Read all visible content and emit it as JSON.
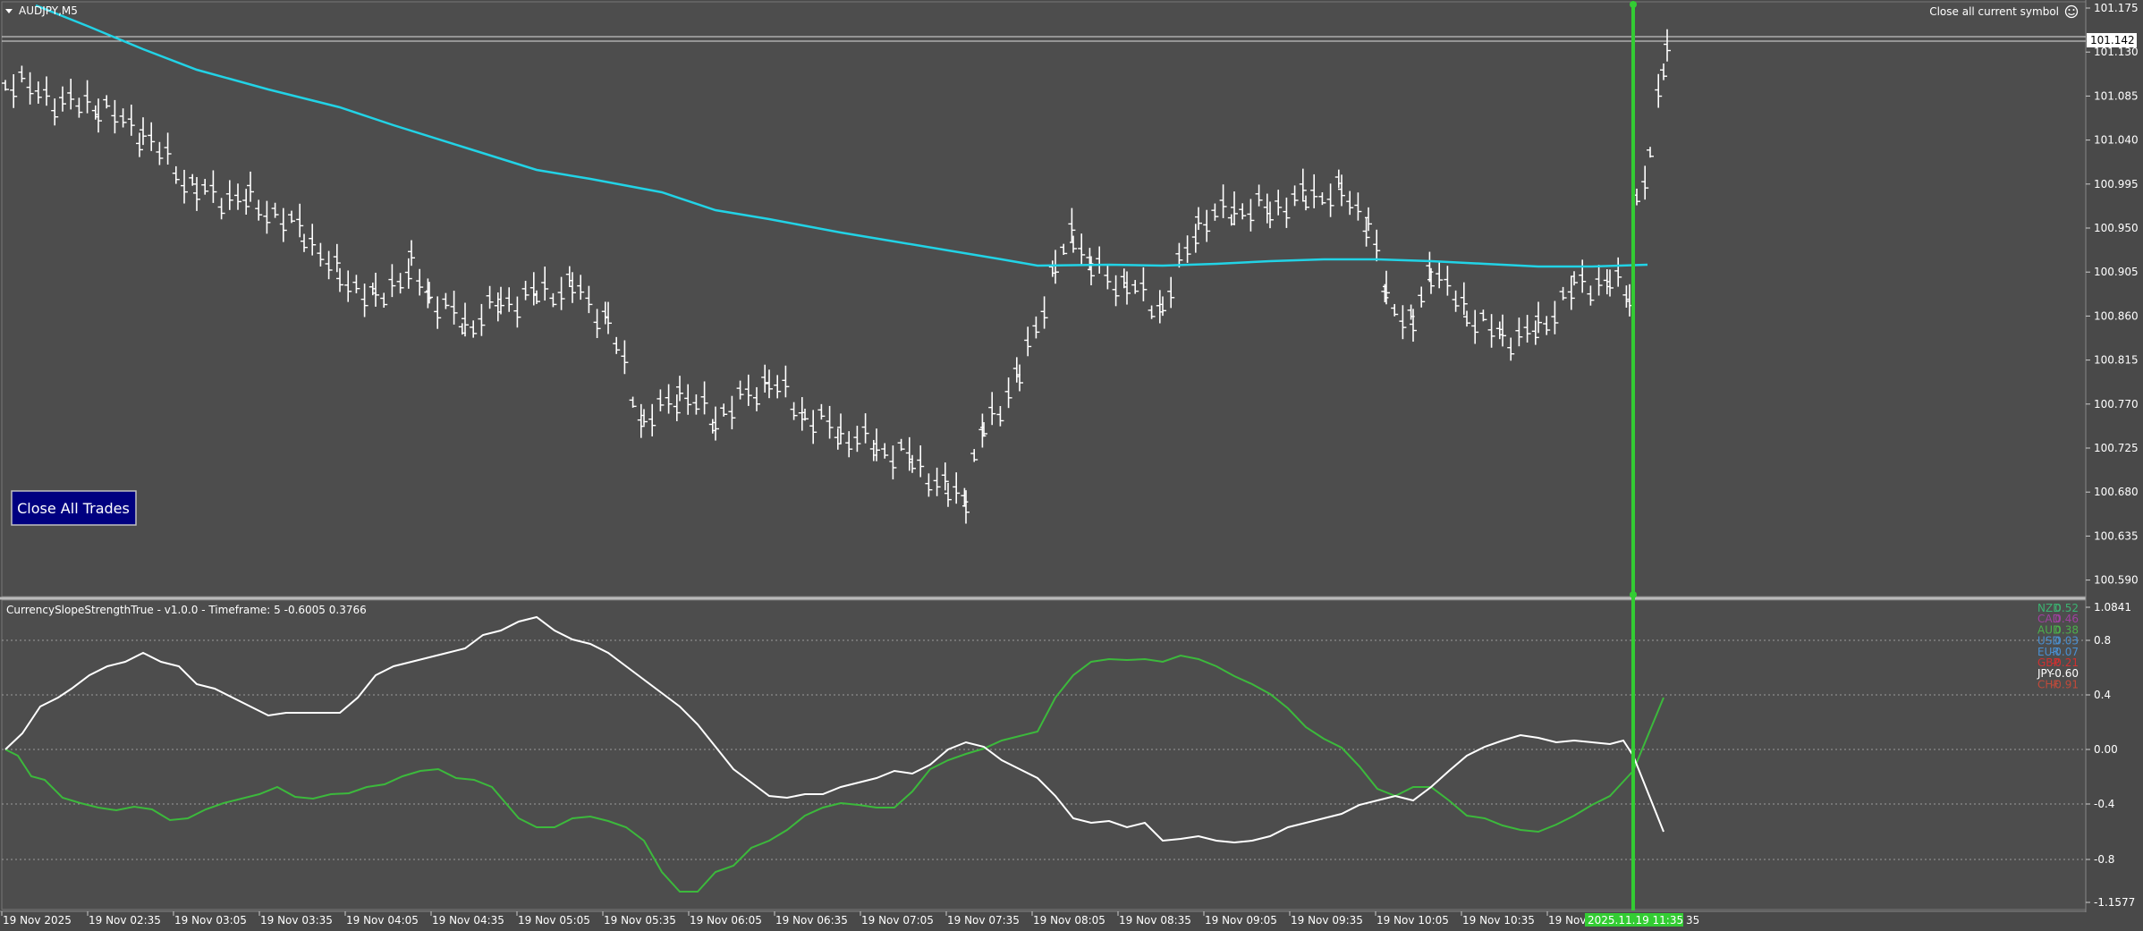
{
  "symbol_label": "AUDJPY,M5",
  "close_symbol_label": "Close all current symbol",
  "close_all_button": "Close All Trades",
  "current_price": "101.142",
  "price_axis": [
    "101.175",
    "101.130",
    "101.085",
    "101.040",
    "100.995",
    "100.950",
    "100.905",
    "100.860",
    "100.815",
    "100.770",
    "100.725",
    "100.680",
    "100.635",
    "100.590"
  ],
  "indicator": {
    "title": "CurrencySlopeStrengthTrue",
    "version": "v1.0.0",
    "timeframe": "Timeframe: 5",
    "values": "-0.6005 0.3766",
    "axis": [
      "1.0841",
      "0.8",
      "0.4",
      "0.00",
      "-0.4",
      "-0.8",
      "-1.1577"
    ]
  },
  "legend": [
    {
      "name": "NZD",
      "value": "0.52",
      "color": "#3cb371"
    },
    {
      "name": "CAD",
      "value": "0.46",
      "color": "#a040a0"
    },
    {
      "name": "AUD",
      "value": "0.38",
      "color": "#4caf4c"
    },
    {
      "name": "USD",
      "value": "0.03",
      "color": "#4a8fd0"
    },
    {
      "name": "EUR",
      "value": "-0.07",
      "color": "#4a8fd0"
    },
    {
      "name": "GBP",
      "value": "-0.21",
      "color": "#d03030"
    },
    {
      "name": "JPY",
      "value": "-0.60",
      "color": "#ffffff"
    },
    {
      "name": "CHF",
      "value": "-0.91",
      "color": "#c04a3a"
    }
  ],
  "time_axis": [
    "19 Nov 2025",
    "19 Nov 02:35",
    "19 Nov 03:05",
    "19 Nov 03:35",
    "19 Nov 04:05",
    "19 Nov 04:35",
    "19 Nov 05:05",
    "19 Nov 05:35",
    "19 Nov 06:05",
    "19 Nov 06:35",
    "19 Nov 07:05",
    "19 Nov 07:35",
    "19 Nov 08:05",
    "19 Nov 08:35",
    "19 Nov 09:05",
    "19 Nov 09:35",
    "19 Nov 10:05",
    "19 Nov 10:35",
    "19 Nov"
  ],
  "time_highlight": "2025.11.19 11:35",
  "time_tail": "35",
  "colors": {
    "background": "#4d4d4d",
    "bars": "#ffffff",
    "ma": "#22d3e6",
    "aud_line": "#3cb93c",
    "jpy_line": "#ffffff",
    "cursor": "#33cc33"
  }
}
